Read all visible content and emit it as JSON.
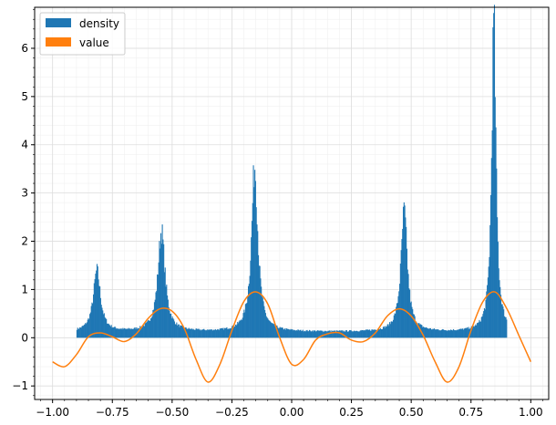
{
  "chart_data": {
    "type": "bar",
    "title": "",
    "xlabel": "",
    "ylabel": "",
    "xlim": [
      -1.075,
      1.075
    ],
    "ylim": [
      -1.28,
      6.85
    ],
    "grid": true,
    "minor_grid": true,
    "legend_position": "top-left",
    "x_ticks": [
      -1.0,
      -0.75,
      -0.5,
      -0.25,
      0.0,
      0.25,
      0.5,
      0.75,
      1.0
    ],
    "x_tick_labels": [
      "−1.00",
      "−0.75",
      "−0.50",
      "−0.25",
      "0.00",
      "0.25",
      "0.50",
      "0.75",
      "1.00"
    ],
    "y_ticks": [
      -1,
      0,
      1,
      2,
      3,
      4,
      5,
      6
    ],
    "y_tick_labels": [
      "−1",
      "0",
      "1",
      "2",
      "3",
      "4",
      "5",
      "6"
    ],
    "series": [
      {
        "name": "density",
        "kind": "histogram",
        "color": "#1f77b4",
        "x_range": [
          -0.9,
          0.9
        ],
        "baseline": 0.12,
        "peaks": [
          {
            "x": -0.815,
            "height": 1.38,
            "width": 0.018
          },
          {
            "x": -0.545,
            "height": 2.2,
            "width": 0.018
          },
          {
            "x": -0.155,
            "height": 3.55,
            "width": 0.016
          },
          {
            "x": 0.47,
            "height": 2.6,
            "width": 0.016
          },
          {
            "x": 0.845,
            "height": 6.5,
            "width": 0.011
          }
        ]
      },
      {
        "name": "value",
        "kind": "line",
        "color": "#ff7f0e",
        "x": [
          -1.0,
          -0.95,
          -0.9,
          -0.85,
          -0.8,
          -0.75,
          -0.7,
          -0.65,
          -0.6,
          -0.55,
          -0.5,
          -0.45,
          -0.4,
          -0.35,
          -0.3,
          -0.25,
          -0.2,
          -0.15,
          -0.1,
          -0.05,
          0.0,
          0.05,
          0.1,
          0.15,
          0.2,
          0.25,
          0.3,
          0.35,
          0.4,
          0.45,
          0.5,
          0.55,
          0.6,
          0.65,
          0.7,
          0.75,
          0.8,
          0.85,
          0.9,
          0.95,
          1.0
        ],
        "y": [
          -0.5,
          -0.6,
          -0.35,
          0.02,
          0.1,
          0.02,
          -0.08,
          0.08,
          0.4,
          0.6,
          0.55,
          0.2,
          -0.45,
          -0.92,
          -0.55,
          0.15,
          0.75,
          0.95,
          0.7,
          0.0,
          -0.55,
          -0.45,
          -0.05,
          0.08,
          0.1,
          -0.05,
          -0.08,
          0.1,
          0.45,
          0.6,
          0.45,
          0.05,
          -0.5,
          -0.92,
          -0.6,
          0.15,
          0.75,
          0.95,
          0.6,
          0.05,
          -0.5
        ]
      }
    ]
  }
}
